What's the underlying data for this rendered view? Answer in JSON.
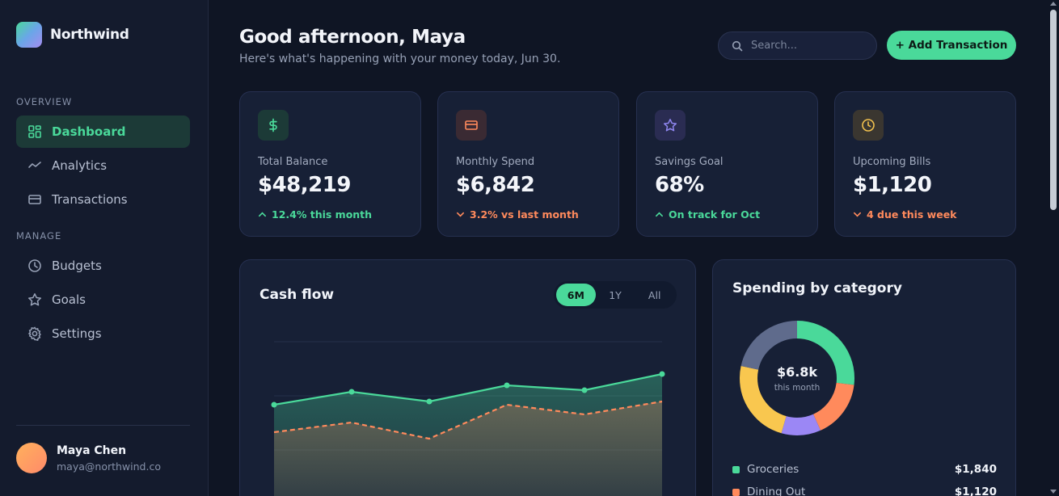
{
  "brand": {
    "name": "Northwind"
  },
  "sidebar": {
    "sections": [
      {
        "label": "OVERVIEW"
      },
      {
        "label": "MANAGE"
      }
    ],
    "items": [
      {
        "label": "Dashboard",
        "icon": "dashboard-grid-icon",
        "active": true
      },
      {
        "label": "Analytics",
        "icon": "analytics-trend-icon"
      },
      {
        "label": "Transactions",
        "icon": "credit-card-icon"
      },
      {
        "label": "Budgets",
        "icon": "clock-icon"
      },
      {
        "label": "Goals",
        "icon": "star-icon"
      },
      {
        "label": "Settings",
        "icon": "gear-icon"
      }
    ],
    "user": {
      "name": "Maya Chen",
      "email": "maya@northwind.co"
    }
  },
  "header": {
    "greeting": "Good afternoon, Maya",
    "subtitle": "Here's what's happening with your money today, Jun 30.",
    "search_placeholder": "Search...",
    "add_button": "+ Add Transaction"
  },
  "cards": [
    {
      "label": "Total Balance",
      "value": "$48,219",
      "trend": "12.4% this month",
      "direction": "up",
      "icon": "dollar-icon",
      "accent": "#4ad99a"
    },
    {
      "label": "Monthly Spend",
      "value": "$6,842",
      "trend": "3.2% vs last month",
      "direction": "down",
      "icon": "credit-card-icon",
      "accent": "#ff8a5c"
    },
    {
      "label": "Savings Goal",
      "value": "68%",
      "trend": "On track for Oct",
      "direction": "up",
      "icon": "star-icon",
      "accent": "#8f86f0"
    },
    {
      "label": "Upcoming Bills",
      "value": "$1,120",
      "trend": "4 due this week",
      "direction": "down",
      "icon": "clock-icon",
      "accent": "#f2c14e"
    }
  ],
  "cashflow": {
    "title": "Cash flow",
    "ranges": [
      "6M",
      "1Y",
      "All"
    ],
    "active_range": "6M"
  },
  "chart_data": {
    "type": "area",
    "series": [
      {
        "values": [
          61,
          69,
          63,
          73,
          70,
          80
        ],
        "color": "#4ad99a",
        "style": "solid"
      },
      {
        "values": [
          44,
          50,
          40,
          61,
          55,
          63
        ],
        "color": "#ff8a5c",
        "style": "dashed"
      }
    ],
    "ylim": [
      0,
      100
    ],
    "grid": true
  },
  "spending": {
    "title": "Spending by category",
    "center_value": "$6.8k",
    "center_label": "this month",
    "segments": [
      {
        "name": "Groceries",
        "amount": "$1,840",
        "value": 1840,
        "color": "#4ad99a"
      },
      {
        "name": "Dining Out",
        "amount": "$1,120",
        "value": 1120,
        "color": "#ff8a5c"
      },
      {
        "value": 760,
        "color": "#9b87f5"
      },
      {
        "value": 1640,
        "color": "#f9c74f"
      },
      {
        "value": 1480,
        "color": "#5f6b8c"
      }
    ]
  }
}
